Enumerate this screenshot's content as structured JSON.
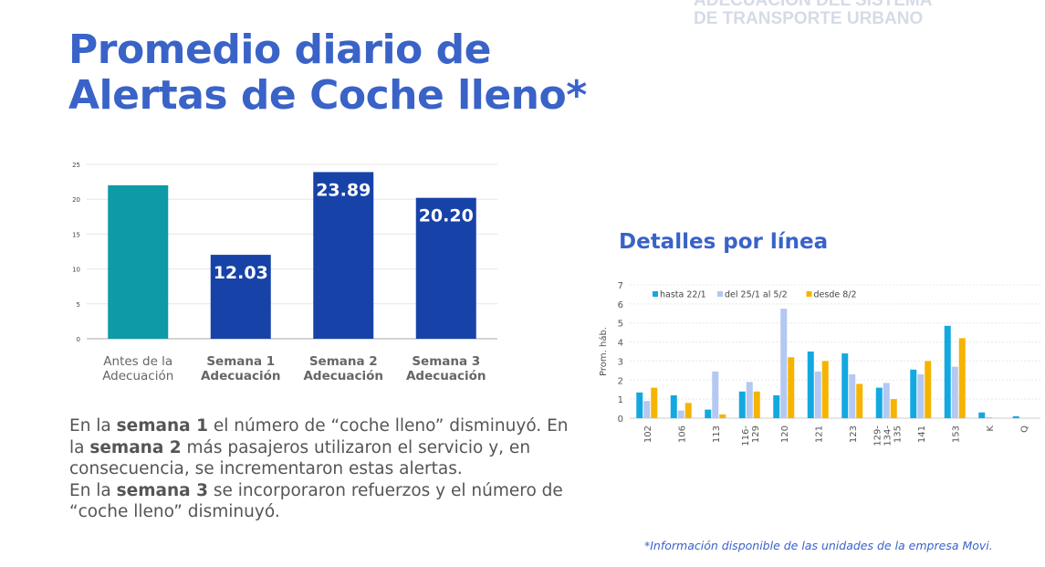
{
  "header": {
    "line1": "ADECUACIÓN DEL SISTEMA",
    "line2": "DE TRANSPORTE URBANO"
  },
  "title": {
    "line1": "Promedio diario de",
    "line2": "Alertas de Coche lleno*"
  },
  "subtitle": "Detalles por línea",
  "paragraph": {
    "p1a": "En la ",
    "p1b": "semana 1",
    "p1c": " el número de “coche lleno” disminuyó. En la ",
    "p1d": "semana 2",
    "p1e": " más pasajeros utilizaron el servicio y, en consecuencia, se incrementaron estas alertas.",
    "p2a": "En la ",
    "p2b": "semana 3",
    "p2c": "  se incorporaron refuerzos y el número de “coche lleno” disminuyó."
  },
  "footnote": "*Información disponible de las unidades de la empresa Movi.",
  "chart_data": [
    {
      "type": "bar",
      "categories": [
        [
          "Antes de la",
          "Adecuación"
        ],
        [
          "Semana 1",
          "Adecuación"
        ],
        [
          "Semana 2",
          "Adecuación"
        ],
        [
          "Semana 3",
          "Adecuación"
        ]
      ],
      "values": [
        22,
        12.03,
        23.89,
        20.2
      ],
      "labels": [
        "",
        "12.03",
        "23.89",
        "20.20"
      ],
      "colors": [
        "#0e9aa7",
        "#1742a8",
        "#1742a8",
        "#1742a8"
      ],
      "ylim": [
        0,
        25
      ],
      "yticks": [
        "0",
        "5",
        "10",
        "15",
        "20",
        "25"
      ]
    },
    {
      "type": "bar",
      "ylabel": "Prom. háb.",
      "ylim": [
        0,
        7
      ],
      "yticks": [
        "0",
        "1",
        "2",
        "3",
        "4",
        "5",
        "6",
        "7"
      ],
      "categories": [
        [
          "102"
        ],
        [
          "106"
        ],
        [
          "113"
        ],
        [
          "116-",
          "129"
        ],
        [
          "120"
        ],
        [
          "121"
        ],
        [
          "123"
        ],
        [
          "129-",
          "134-",
          "135"
        ],
        [
          "141"
        ],
        [
          "153"
        ],
        [
          "K"
        ],
        [
          "Q"
        ]
      ],
      "series": [
        {
          "name": "hasta 22/1",
          "color": "#12a9e0",
          "values": [
            1.35,
            1.2,
            0.45,
            1.4,
            1.2,
            3.5,
            3.4,
            1.6,
            2.55,
            4.85,
            0.3,
            0.1
          ]
        },
        {
          "name": "del 25/1 al 5/2",
          "color": "#b3c8f2",
          "values": [
            0.9,
            0.4,
            2.45,
            1.9,
            5.75,
            2.45,
            2.3,
            1.85,
            2.3,
            2.7,
            0.05,
            0
          ]
        },
        {
          "name": "desde 8/2",
          "color": "#f5b400",
          "values": [
            1.6,
            0.8,
            0.2,
            1.4,
            3.2,
            3.0,
            1.8,
            1.0,
            3.0,
            4.2,
            0,
            0
          ]
        }
      ]
    }
  ]
}
